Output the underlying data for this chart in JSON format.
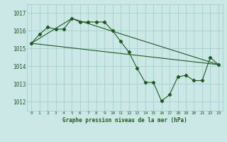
{
  "title": "Graphe pression niveau de la mer (hPa)",
  "xlim": [
    -0.5,
    23.5
  ],
  "ylim": [
    1011.5,
    1017.5
  ],
  "yticks": [
    1012,
    1013,
    1014,
    1015,
    1016,
    1017
  ],
  "xticks": [
    0,
    1,
    2,
    3,
    4,
    5,
    6,
    7,
    8,
    9,
    10,
    11,
    12,
    13,
    14,
    15,
    16,
    17,
    18,
    19,
    20,
    21,
    22,
    23
  ],
  "bg_color": "#cce8e6",
  "grid_color": "#99ccca",
  "line_color": "#1e5c1e",
  "line1_x": [
    0,
    1,
    2,
    3,
    4,
    5,
    6,
    7,
    8,
    9,
    10,
    11,
    12,
    13,
    14,
    15,
    16,
    17,
    18,
    19,
    20,
    21,
    22,
    23
  ],
  "line1_y": [
    1015.3,
    1015.8,
    1016.2,
    1016.1,
    1016.1,
    1016.7,
    1016.5,
    1016.5,
    1016.5,
    1016.5,
    1016.0,
    1015.4,
    1014.8,
    1013.9,
    1013.1,
    1013.1,
    1012.05,
    1012.4,
    1013.4,
    1013.5,
    1013.2,
    1013.2,
    1014.5,
    1014.1
  ],
  "line2_x": [
    0,
    23
  ],
  "line2_y": [
    1015.3,
    1014.1
  ],
  "line3_x": [
    0,
    5,
    23
  ],
  "line3_y": [
    1015.3,
    1016.7,
    1014.1
  ]
}
